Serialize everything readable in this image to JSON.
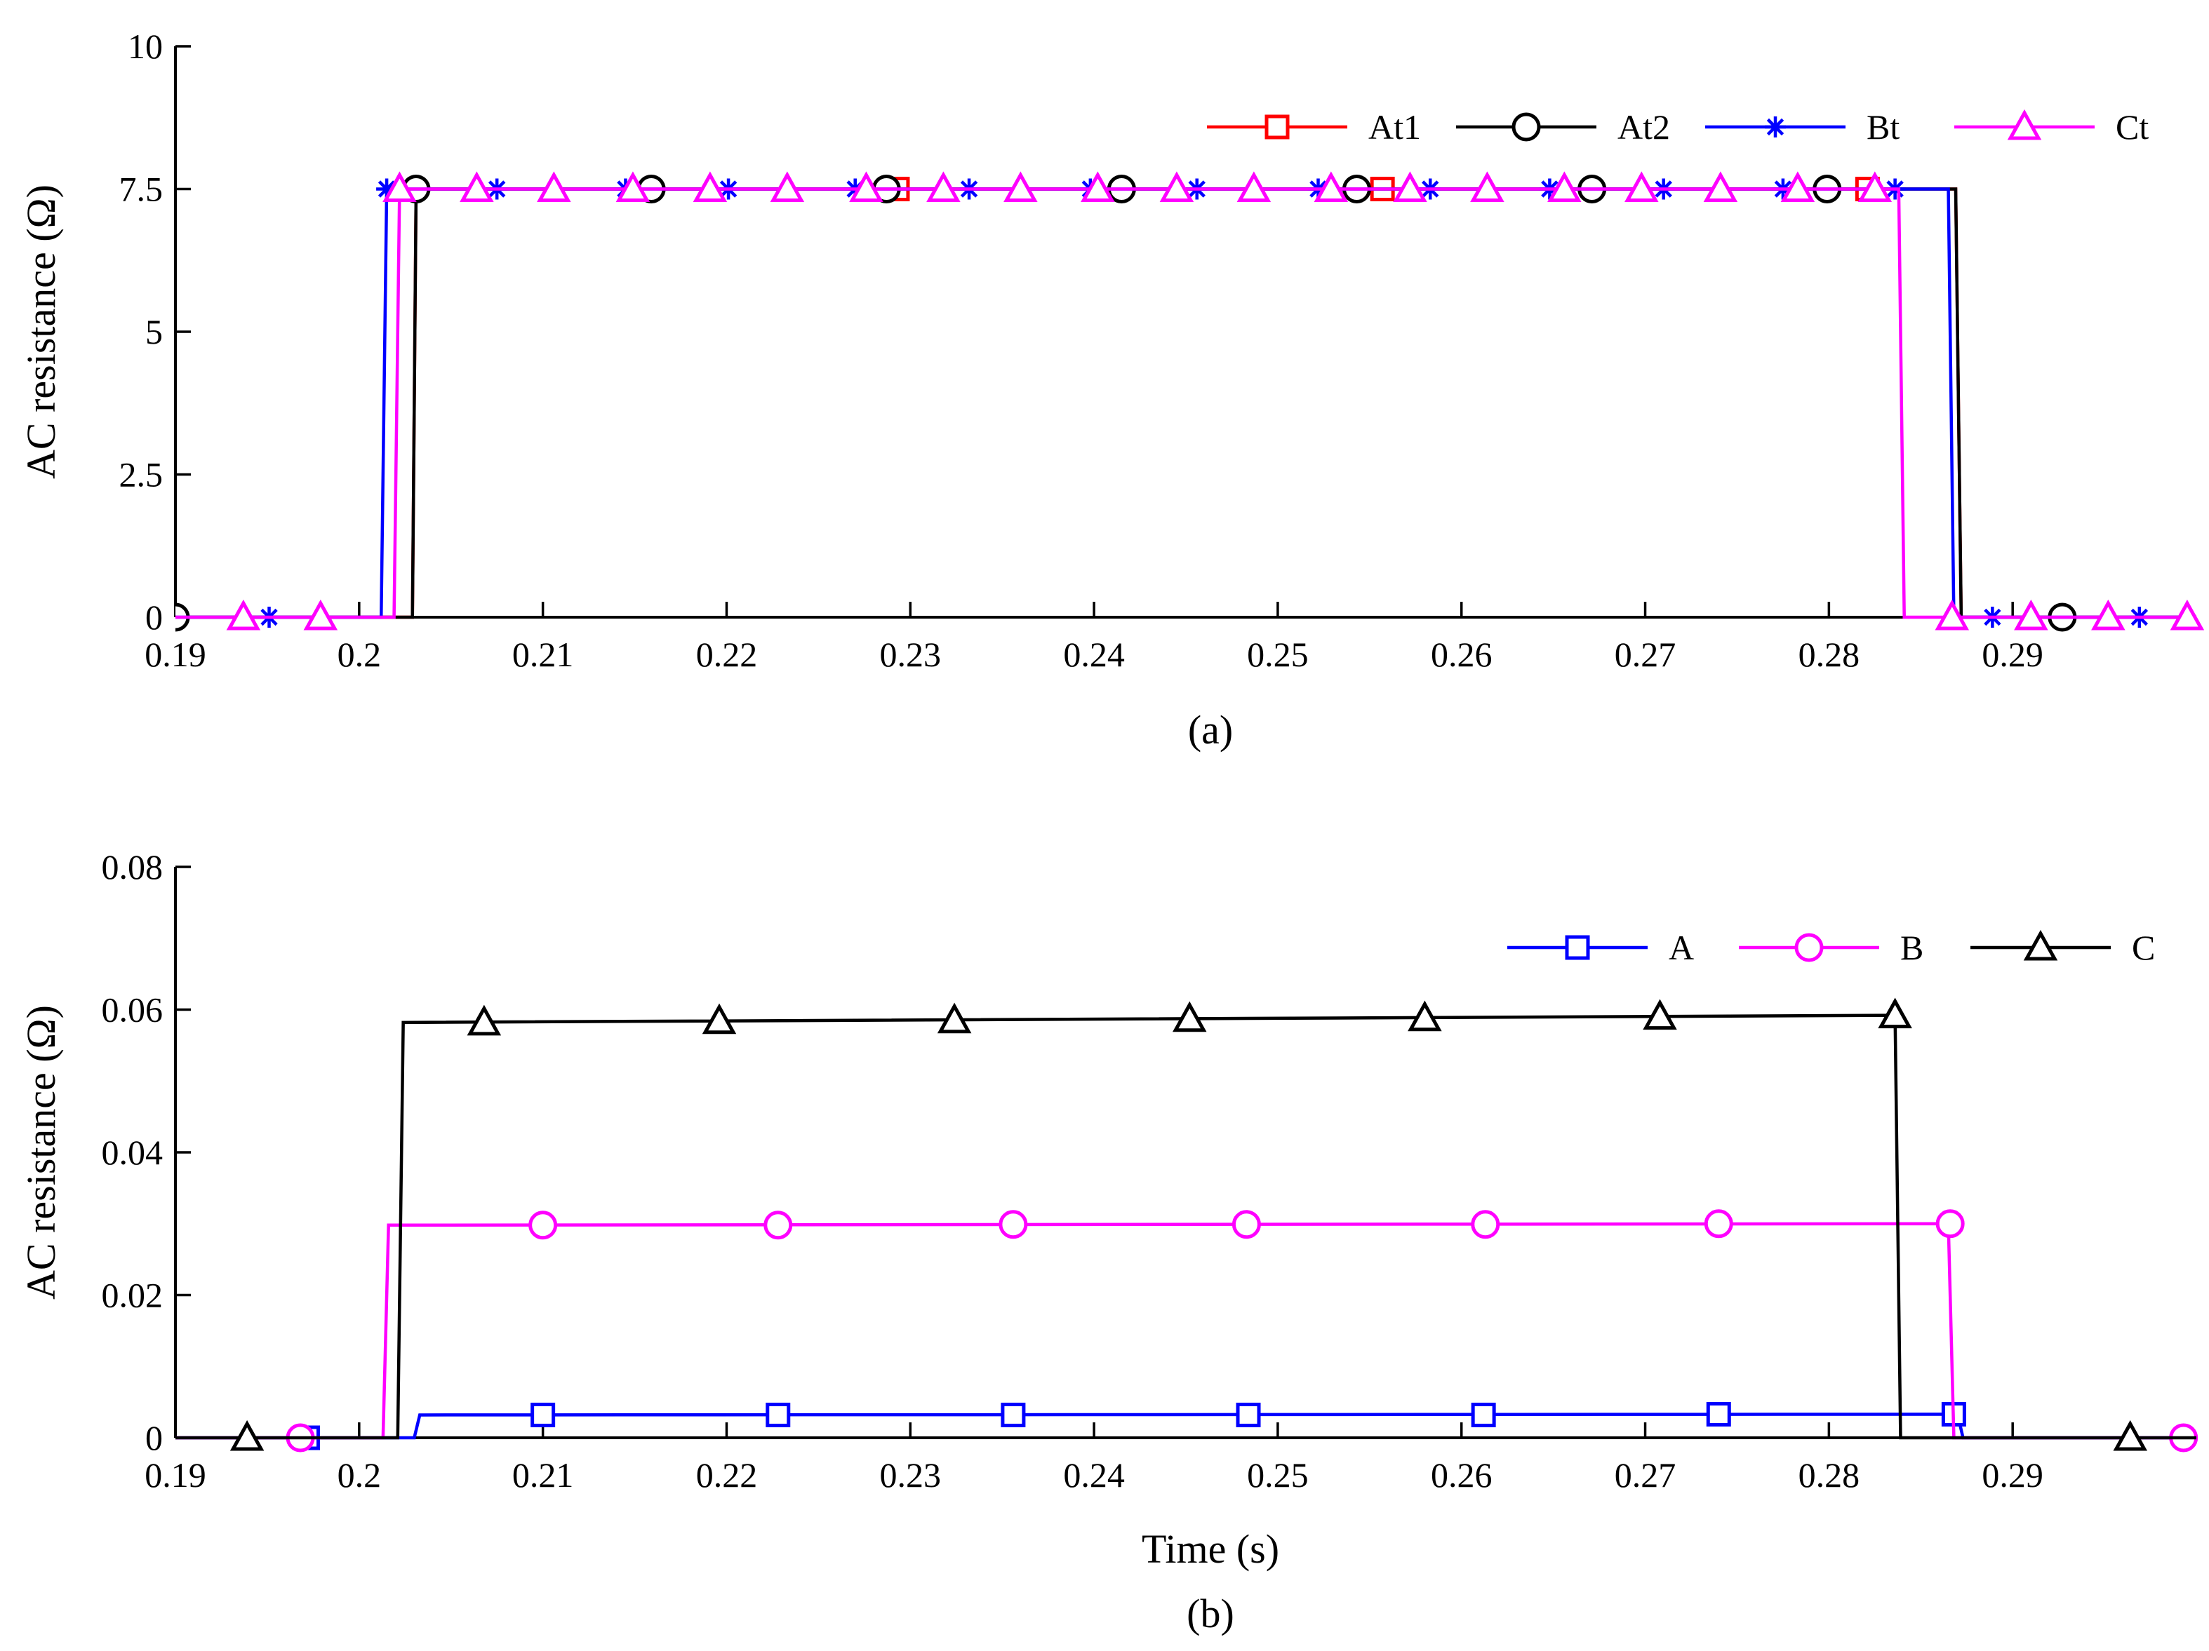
{
  "chart_data": [
    {
      "type": "line",
      "caption": "(a)",
      "title": "",
      "xlabel": "",
      "ylabel": "AC resistance (Ω)",
      "xlim": [
        0.19,
        0.3
      ],
      "ylim": [
        0,
        10
      ],
      "x_ticks": [
        0.19,
        0.2,
        0.21,
        0.22,
        0.23,
        0.24,
        0.25,
        0.26,
        0.27,
        0.28,
        0.29
      ],
      "x_tick_labels": [
        "0.19",
        "0.2",
        "0.21",
        "0.22",
        "0.23",
        "0.24",
        "0.25",
        "0.26",
        "0.27",
        "0.28",
        "0.29"
      ],
      "y_ticks": [
        0,
        2.5,
        5,
        7.5,
        10
      ],
      "y_tick_labels": [
        "0",
        "2.5",
        "5",
        "7.5",
        "10"
      ],
      "grid": false,
      "legend_position": "top-right",
      "legend_layout": "horizontal",
      "series": [
        {
          "name": "At1",
          "color": "#ff0000",
          "marker": "square",
          "x": [
            0.19,
            0.2029,
            0.2031,
            0.2869,
            0.2872,
            0.3
          ],
          "y": [
            0,
            0,
            7.5,
            7.5,
            0,
            0
          ],
          "marker_x": [
            0.2293,
            0.2557,
            0.2821
          ],
          "marker_y": [
            7.5,
            7.5,
            7.5
          ]
        },
        {
          "name": "At2",
          "color": "#000000",
          "marker": "circle",
          "x": [
            0.19,
            0.2029,
            0.2031,
            0.2869,
            0.2872,
            0.3
          ],
          "y": [
            0,
            0,
            7.5,
            7.5,
            0,
            0
          ],
          "marker_x": [
            0.19,
            0.2031,
            0.2159,
            0.2287,
            0.2415,
            0.2543,
            0.2671,
            0.2799,
            0.2927
          ],
          "marker_y": [
            0,
            7.5,
            7.5,
            7.5,
            7.5,
            7.5,
            7.5,
            7.5,
            0
          ]
        },
        {
          "name": "Bt",
          "color": "#0000ff",
          "marker": "star",
          "x": [
            0.19,
            0.2012,
            0.2015,
            0.2865,
            0.2868,
            0.3
          ],
          "y": [
            0,
            0,
            7.5,
            7.5,
            0,
            0
          ],
          "marker_x": [
            0.1951,
            0.2015,
            0.2075,
            0.2145,
            0.2201,
            0.227,
            0.2332,
            0.2398,
            0.2456,
            0.2522,
            0.2583,
            0.2648,
            0.271,
            0.2775,
            0.2836,
            0.2889,
            0.2969
          ],
          "marker_y": [
            0,
            7.5,
            7.5,
            7.5,
            7.5,
            7.5,
            7.5,
            7.5,
            7.5,
            7.5,
            7.5,
            7.5,
            7.5,
            7.5,
            7.5,
            0,
            0
          ]
        },
        {
          "name": "Ct",
          "color": "#ff00ff",
          "marker": "triangle",
          "x": [
            0.19,
            0.2019,
            0.2022,
            0.2838,
            0.2841,
            0.3
          ],
          "y": [
            0,
            0,
            7.5,
            7.5,
            0,
            0
          ],
          "marker_x": [
            0.1937,
            0.1979,
            0.2022,
            0.2064,
            0.2106,
            0.2149,
            0.2191,
            0.2233,
            0.2276,
            0.2318,
            0.236,
            0.2402,
            0.2445,
            0.2487,
            0.2529,
            0.2572,
            0.2614,
            0.2656,
            0.2698,
            0.2741,
            0.2783,
            0.2825,
            0.2867,
            0.291,
            0.2952,
            0.2995
          ],
          "marker_y": [
            0,
            0,
            7.5,
            7.5,
            7.5,
            7.5,
            7.5,
            7.5,
            7.5,
            7.5,
            7.5,
            7.5,
            7.5,
            7.5,
            7.5,
            7.5,
            7.5,
            7.5,
            7.5,
            7.5,
            7.5,
            7.5,
            0,
            0,
            0,
            0
          ]
        }
      ]
    },
    {
      "type": "line",
      "caption": "(b)",
      "title": "",
      "xlabel": "Time (s)",
      "ylabel": "AC resistance (Ω)",
      "xlim": [
        0.19,
        0.3
      ],
      "ylim": [
        0,
        0.08
      ],
      "x_ticks": [
        0.19,
        0.2,
        0.21,
        0.22,
        0.23,
        0.24,
        0.25,
        0.26,
        0.27,
        0.28,
        0.29
      ],
      "x_tick_labels": [
        "0.19",
        "0.2",
        "0.21",
        "0.22",
        "0.23",
        "0.24",
        "0.25",
        "0.26",
        "0.27",
        "0.28",
        "0.29"
      ],
      "y_ticks": [
        0,
        0.02,
        0.04,
        0.06,
        0.08
      ],
      "y_tick_labels": [
        "0",
        "0.02",
        "0.04",
        "0.06",
        "0.08"
      ],
      "grid": false,
      "legend_position": "top-right",
      "legend_layout": "horizontal",
      "series": [
        {
          "name": "A",
          "color": "#0000ff",
          "marker": "square",
          "x": [
            0.19,
            0.203,
            0.2033,
            0.287,
            0.2873,
            0.3
          ],
          "y": [
            0,
            0,
            0.0032,
            0.0033,
            0,
            0
          ],
          "marker_x": [
            0.1972,
            0.21,
            0.2228,
            0.2356,
            0.2484,
            0.2612,
            0.274,
            0.2868
          ],
          "marker_y": [
            0,
            0.0032,
            0.0032,
            0.0032,
            0.0032,
            0.0032,
            0.0033,
            0.0033
          ]
        },
        {
          "name": "B",
          "color": "#ff00ff",
          "marker": "circle",
          "x": [
            0.19,
            0.2013,
            0.2016,
            0.2865,
            0.2868,
            0.3
          ],
          "y": [
            0,
            0,
            0.0298,
            0.03,
            0,
            0
          ],
          "marker_x": [
            0.1968,
            0.21,
            0.2228,
            0.2356,
            0.2483,
            0.2613,
            0.274,
            0.2866,
            0.2993
          ],
          "marker_y": [
            0,
            0.0298,
            0.0298,
            0.0299,
            0.0299,
            0.0299,
            0.03,
            0.03,
            0
          ]
        },
        {
          "name": "C",
          "color": "#000000",
          "marker": "triangle",
          "x": [
            0.19,
            0.2021,
            0.2024,
            0.2836,
            0.2839,
            0.3
          ],
          "y": [
            0,
            0,
            0.0582,
            0.0592,
            0,
            0
          ],
          "marker_x": [
            0.1939,
            0.2068,
            0.2196,
            0.2324,
            0.2452,
            0.258,
            0.2708,
            0.2836,
            0.2964
          ],
          "marker_y": [
            0,
            0.0582,
            0.0584,
            0.0585,
            0.0587,
            0.0588,
            0.059,
            0.0592,
            0
          ]
        }
      ]
    }
  ]
}
